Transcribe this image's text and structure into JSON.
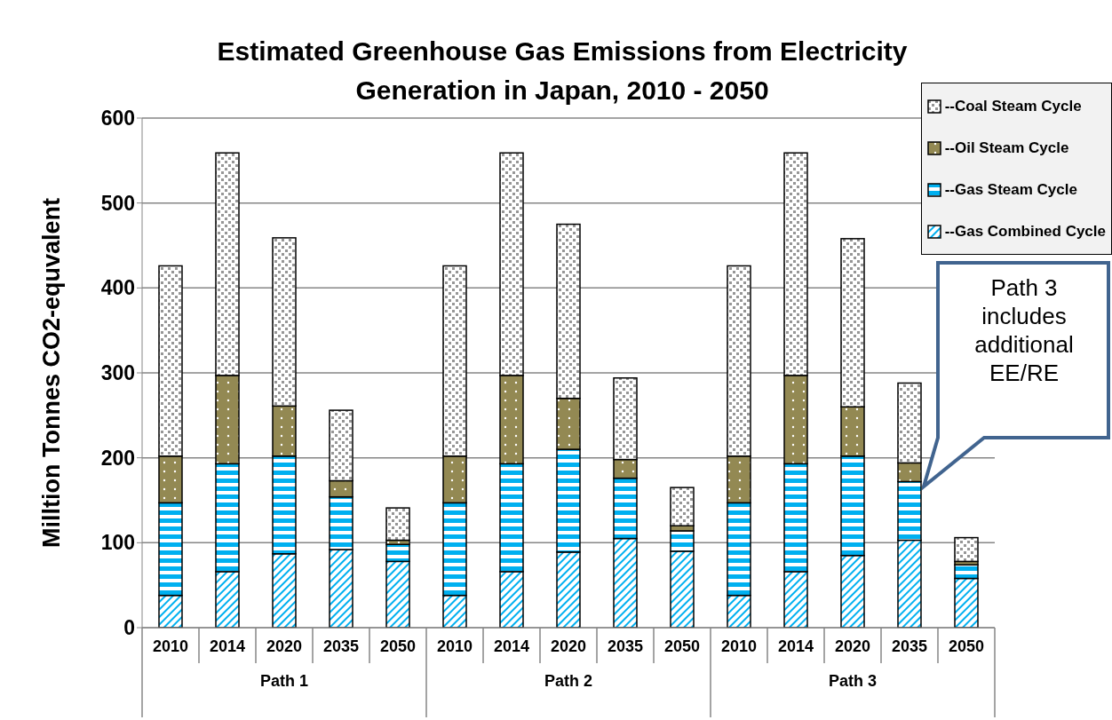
{
  "chart_data": {
    "type": "bar",
    "stacked": true,
    "title": "Estimated Greenhouse Gas Emissions from Electricity Generation in Japan, 2010 - 2050",
    "ylabel": "Milltion Tonnes CO2-equvalent",
    "categories": [
      "2010",
      "2014",
      "2020",
      "2035",
      "2050",
      "2010",
      "2014",
      "2020",
      "2035",
      "2050",
      "2010",
      "2014",
      "2020",
      "2035",
      "2050"
    ],
    "series": [
      {
        "name": "--Gas Combined Cycle",
        "color": "#00b0f0",
        "values": [
          38,
          66,
          87,
          92,
          78,
          38,
          66,
          89,
          105,
          90,
          38,
          66,
          85,
          103,
          58
        ]
      },
      {
        "name": "--Gas Steam Cycle",
        "color": "#00b0f0",
        "values": [
          109,
          127,
          115,
          62,
          20,
          109,
          127,
          121,
          71,
          24,
          109,
          127,
          117,
          69,
          16
        ]
      },
      {
        "name": "--Oil Steam Cycle",
        "color": "#938953",
        "values": [
          55,
          104,
          59,
          19,
          5,
          55,
          104,
          60,
          22,
          6,
          55,
          104,
          58,
          22,
          4
        ]
      },
      {
        "name": "--Coal Steam Cycle",
        "color": "#969696",
        "values": [
          224,
          262,
          198,
          83,
          38,
          224,
          262,
          205,
          96,
          45,
          224,
          262,
          198,
          94,
          28
        ]
      }
    ],
    "ylim": [
      0,
      600
    ],
    "yticks": [
      0,
      100,
      200,
      300,
      400,
      500,
      600
    ],
    "grid": "y",
    "legend": "top right",
    "annotations": [
      "Path 1",
      "Path 2",
      "Path 3",
      "Path 3 includes additional EE/RE"
    ]
  }
}
